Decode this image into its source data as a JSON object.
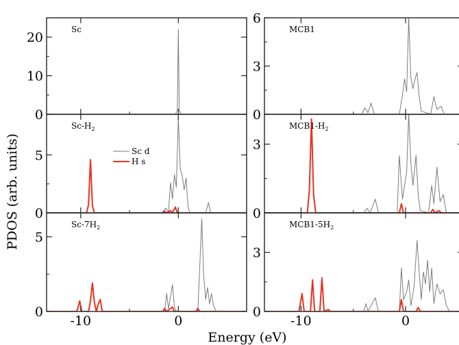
{
  "figure": {
    "ylabel": "PDOS (arb. units)",
    "xlabel": "Energy (eV)"
  },
  "legend": [
    {
      "label": "Sc d",
      "color": "#7a7a7a"
    },
    {
      "label": "H s",
      "color": "#e8311f"
    }
  ],
  "chart_data": [
    {
      "type": "line",
      "panel": "Sc",
      "xlim": [
        -13.5,
        7
      ],
      "ylim": [
        0,
        25
      ],
      "yticks": [
        0,
        10,
        20
      ],
      "xticks": [
        -10,
        0
      ],
      "series": [
        {
          "name": "Sc d",
          "points": [
            [
              -13.5,
              0
            ],
            [
              -0.3,
              0
            ],
            [
              -0.1,
              1
            ],
            [
              0,
              22
            ],
            [
              0.1,
              1
            ],
            [
              0.3,
              0
            ],
            [
              7,
              0
            ]
          ]
        }
      ]
    },
    {
      "type": "line",
      "panel": "MCB1",
      "xlim": [
        -13.5,
        5.5
      ],
      "ylim": [
        0,
        6
      ],
      "yticks": [
        0,
        3,
        6
      ],
      "xticks": [
        -10,
        0
      ],
      "series": [
        {
          "name": "Sc d",
          "points": [
            [
              -13.5,
              0
            ],
            [
              -4.2,
              0
            ],
            [
              -3.9,
              0.4
            ],
            [
              -3.6,
              0.1
            ],
            [
              -3.3,
              0.7
            ],
            [
              -3.0,
              0
            ],
            [
              -0.6,
              0
            ],
            [
              -0.3,
              1.2
            ],
            [
              -0.1,
              2.2
            ],
            [
              0.1,
              1.4
            ],
            [
              0.3,
              6
            ],
            [
              0.5,
              2.3
            ],
            [
              0.7,
              1.6
            ],
            [
              0.9,
              2.2
            ],
            [
              1.1,
              2.6
            ],
            [
              1.3,
              1.1
            ],
            [
              1.5,
              0.2
            ],
            [
              2.4,
              0
            ],
            [
              2.7,
              1.1
            ],
            [
              3.0,
              0.3
            ],
            [
              3.4,
              0.5
            ],
            [
              3.7,
              0
            ],
            [
              5.5,
              0
            ]
          ]
        }
      ]
    },
    {
      "type": "line",
      "panel": "Sc-H2",
      "xlim": [
        -13.5,
        7
      ],
      "ylim": [
        0,
        8.5
      ],
      "yticks": [
        0,
        5
      ],
      "xticks": [
        -10,
        0
      ],
      "series": [
        {
          "name": "Sc d",
          "points": [
            [
              -13.5,
              0
            ],
            [
              -1.6,
              0
            ],
            [
              -1.3,
              0.4
            ],
            [
              -1.0,
              0.1
            ],
            [
              -0.8,
              2.6
            ],
            [
              -0.6,
              1.2
            ],
            [
              -0.4,
              3.3
            ],
            [
              -0.2,
              2.2
            ],
            [
              0,
              8.2
            ],
            [
              0.2,
              3.8
            ],
            [
              0.4,
              3.2
            ],
            [
              0.6,
              2.0
            ],
            [
              0.8,
              3.0
            ],
            [
              1.0,
              0.5
            ],
            [
              1.2,
              0
            ],
            [
              2.8,
              0
            ],
            [
              3.1,
              0.9
            ],
            [
              3.3,
              0
            ],
            [
              7,
              0
            ]
          ]
        },
        {
          "name": "H s",
          "points": [
            [
              -13.5,
              0
            ],
            [
              -9.4,
              0
            ],
            [
              -9.2,
              0.7
            ],
            [
              -9.0,
              4.6
            ],
            [
              -8.8,
              0.6
            ],
            [
              -8.6,
              0
            ],
            [
              -1.7,
              0
            ],
            [
              -1.4,
              0.15
            ],
            [
              -1.2,
              0
            ],
            [
              -0.8,
              0.2
            ],
            [
              -0.6,
              0
            ],
            [
              -0.3,
              0.5
            ],
            [
              -0.1,
              0
            ],
            [
              7,
              0
            ]
          ]
        }
      ]
    },
    {
      "type": "line",
      "panel": "MCB1-H2",
      "xlim": [
        -13.5,
        5.5
      ],
      "ylim": [
        0,
        4.3
      ],
      "yticks": [
        0,
        3
      ],
      "xticks": [
        -10,
        0
      ],
      "series": [
        {
          "name": "Sc d",
          "points": [
            [
              -13.5,
              0
            ],
            [
              -4.0,
              0
            ],
            [
              -3.7,
              0.2
            ],
            [
              -3.4,
              0
            ],
            [
              -2.9,
              0.6
            ],
            [
              -2.6,
              0
            ],
            [
              -0.8,
              0
            ],
            [
              -0.6,
              2.5
            ],
            [
              -0.3,
              0.6
            ],
            [
              0.1,
              1.8
            ],
            [
              0.3,
              4.3
            ],
            [
              0.5,
              2.2
            ],
            [
              0.7,
              1.2
            ],
            [
              1.0,
              2.5
            ],
            [
              1.2,
              0.8
            ],
            [
              1.4,
              0.1
            ],
            [
              2.2,
              0
            ],
            [
              2.5,
              1.2
            ],
            [
              2.7,
              0.4
            ],
            [
              3.0,
              2.0
            ],
            [
              3.3,
              0.5
            ],
            [
              3.6,
              0.8
            ],
            [
              3.9,
              0
            ],
            [
              5.5,
              0
            ]
          ]
        },
        {
          "name": "H s",
          "points": [
            [
              -13.5,
              0
            ],
            [
              -9.4,
              0
            ],
            [
              -9.2,
              1.0
            ],
            [
              -9.0,
              4.1
            ],
            [
              -8.8,
              0.8
            ],
            [
              -8.6,
              0
            ],
            [
              -0.6,
              0
            ],
            [
              -0.4,
              0.4
            ],
            [
              -0.2,
              0
            ],
            [
              2.4,
              0
            ],
            [
              2.6,
              0.15
            ],
            [
              2.8,
              0
            ],
            [
              3.2,
              0.1
            ],
            [
              3.4,
              0
            ],
            [
              5.5,
              0
            ]
          ]
        }
      ]
    },
    {
      "type": "line",
      "panel": "Sc-7H2",
      "xlim": [
        -13.5,
        7
      ],
      "ylim": [
        0,
        6.6
      ],
      "yticks": [
        0,
        5
      ],
      "xticks": [
        -10,
        0
      ],
      "series": [
        {
          "name": "Sc d",
          "points": [
            [
              -13.5,
              0
            ],
            [
              -1.4,
              0
            ],
            [
              -1.2,
              1.2
            ],
            [
              -1.0,
              0.2
            ],
            [
              -0.8,
              1.0
            ],
            [
              -0.6,
              1.8
            ],
            [
              -0.4,
              0.3
            ],
            [
              -0.2,
              0
            ],
            [
              2.0,
              0
            ],
            [
              2.2,
              3.0
            ],
            [
              2.4,
              6.2
            ],
            [
              2.6,
              2.4
            ],
            [
              2.8,
              0.8
            ],
            [
              3.0,
              1.6
            ],
            [
              3.2,
              0.5
            ],
            [
              3.4,
              1.2
            ],
            [
              3.6,
              0.4
            ],
            [
              3.9,
              0
            ],
            [
              7,
              0
            ]
          ]
        },
        {
          "name": "H s",
          "points": [
            [
              -13.5,
              0
            ],
            [
              -10.4,
              0
            ],
            [
              -10.1,
              0.7
            ],
            [
              -9.9,
              0
            ],
            [
              -9.2,
              0
            ],
            [
              -9.0,
              0.7
            ],
            [
              -8.8,
              1.9
            ],
            [
              -8.6,
              0.6
            ],
            [
              -8.4,
              0
            ],
            [
              -8.2,
              0.5
            ],
            [
              -8.0,
              0.8
            ],
            [
              -7.8,
              0
            ],
            [
              -1.6,
              0
            ],
            [
              -1.4,
              0.2
            ],
            [
              -1.2,
              0
            ],
            [
              -0.6,
              0.3
            ],
            [
              -0.4,
              0
            ],
            [
              1.8,
              0
            ],
            [
              2.0,
              0.2
            ],
            [
              2.2,
              0
            ],
            [
              7,
              0
            ]
          ]
        }
      ]
    },
    {
      "type": "line",
      "panel": "MCB1-5H2",
      "xlim": [
        -13.5,
        5.5
      ],
      "ylim": [
        0,
        5.0
      ],
      "yticks": [
        0,
        3
      ],
      "xticks": [
        -10,
        0
      ],
      "series": [
        {
          "name": "Sc d",
          "points": [
            [
              -13.5,
              0
            ],
            [
              -4.0,
              0
            ],
            [
              -3.8,
              0.4
            ],
            [
              -3.6,
              0
            ],
            [
              -2.9,
              0.7
            ],
            [
              -2.6,
              0
            ],
            [
              -0.6,
              0
            ],
            [
              -0.4,
              2.2
            ],
            [
              -0.2,
              0.6
            ],
            [
              0.1,
              1.0
            ],
            [
              0.3,
              1.6
            ],
            [
              0.5,
              0.3
            ],
            [
              0.8,
              1.2
            ],
            [
              1.1,
              3.6
            ],
            [
              1.3,
              2.0
            ],
            [
              1.5,
              0.6
            ],
            [
              1.7,
              2.0
            ],
            [
              1.9,
              1.4
            ],
            [
              2.1,
              2.6
            ],
            [
              2.3,
              1.0
            ],
            [
              2.5,
              2.2
            ],
            [
              2.7,
              0.4
            ],
            [
              3.0,
              1.4
            ],
            [
              3.3,
              0.9
            ],
            [
              3.6,
              1.1
            ],
            [
              3.9,
              0.3
            ],
            [
              4.2,
              0
            ],
            [
              5.5,
              0
            ]
          ]
        },
        {
          "name": "H s",
          "points": [
            [
              -13.5,
              0
            ],
            [
              -10.2,
              0
            ],
            [
              -9.9,
              0.9
            ],
            [
              -9.7,
              0
            ],
            [
              -9.1,
              0
            ],
            [
              -8.9,
              1.6
            ],
            [
              -8.7,
              0
            ],
            [
              -8.2,
              0
            ],
            [
              -8.0,
              1.7
            ],
            [
              -7.8,
              0
            ],
            [
              -7.4,
              0.1
            ],
            [
              -7.2,
              0
            ],
            [
              -0.6,
              0
            ],
            [
              -0.4,
              0.6
            ],
            [
              -0.2,
              0
            ],
            [
              1.0,
              0
            ],
            [
              1.2,
              0.2
            ],
            [
              1.4,
              0
            ],
            [
              5.5,
              0
            ]
          ]
        }
      ]
    }
  ],
  "panels": [
    {
      "label": "Sc",
      "yticks": [
        "20",
        "10",
        "0"
      ],
      "xticks": [],
      "tick_direction": "in"
    },
    {
      "label": "MCB1",
      "yticks": [
        "6",
        "3",
        "0"
      ],
      "xticks": [],
      "tick_direction": "in"
    },
    {
      "label": "Sc-H",
      "sub": "2",
      "yticks": [
        "5",
        "0"
      ],
      "xticks": [],
      "tick_direction": "in"
    },
    {
      "label": "MCB1-H",
      "sub": "2",
      "yticks": [
        "3",
        "0"
      ],
      "xticks": [],
      "tick_direction": "in"
    },
    {
      "label": "Sc-7H",
      "sub": "2",
      "yticks": [
        "5",
        "0"
      ],
      "xticks": [
        "-10",
        "0"
      ],
      "tick_direction": "in"
    },
    {
      "label": "MCB1-5H",
      "sub": "2",
      "yticks": [
        "3",
        "0"
      ],
      "xticks": [
        "-10",
        "0"
      ],
      "tick_direction": "in"
    }
  ]
}
